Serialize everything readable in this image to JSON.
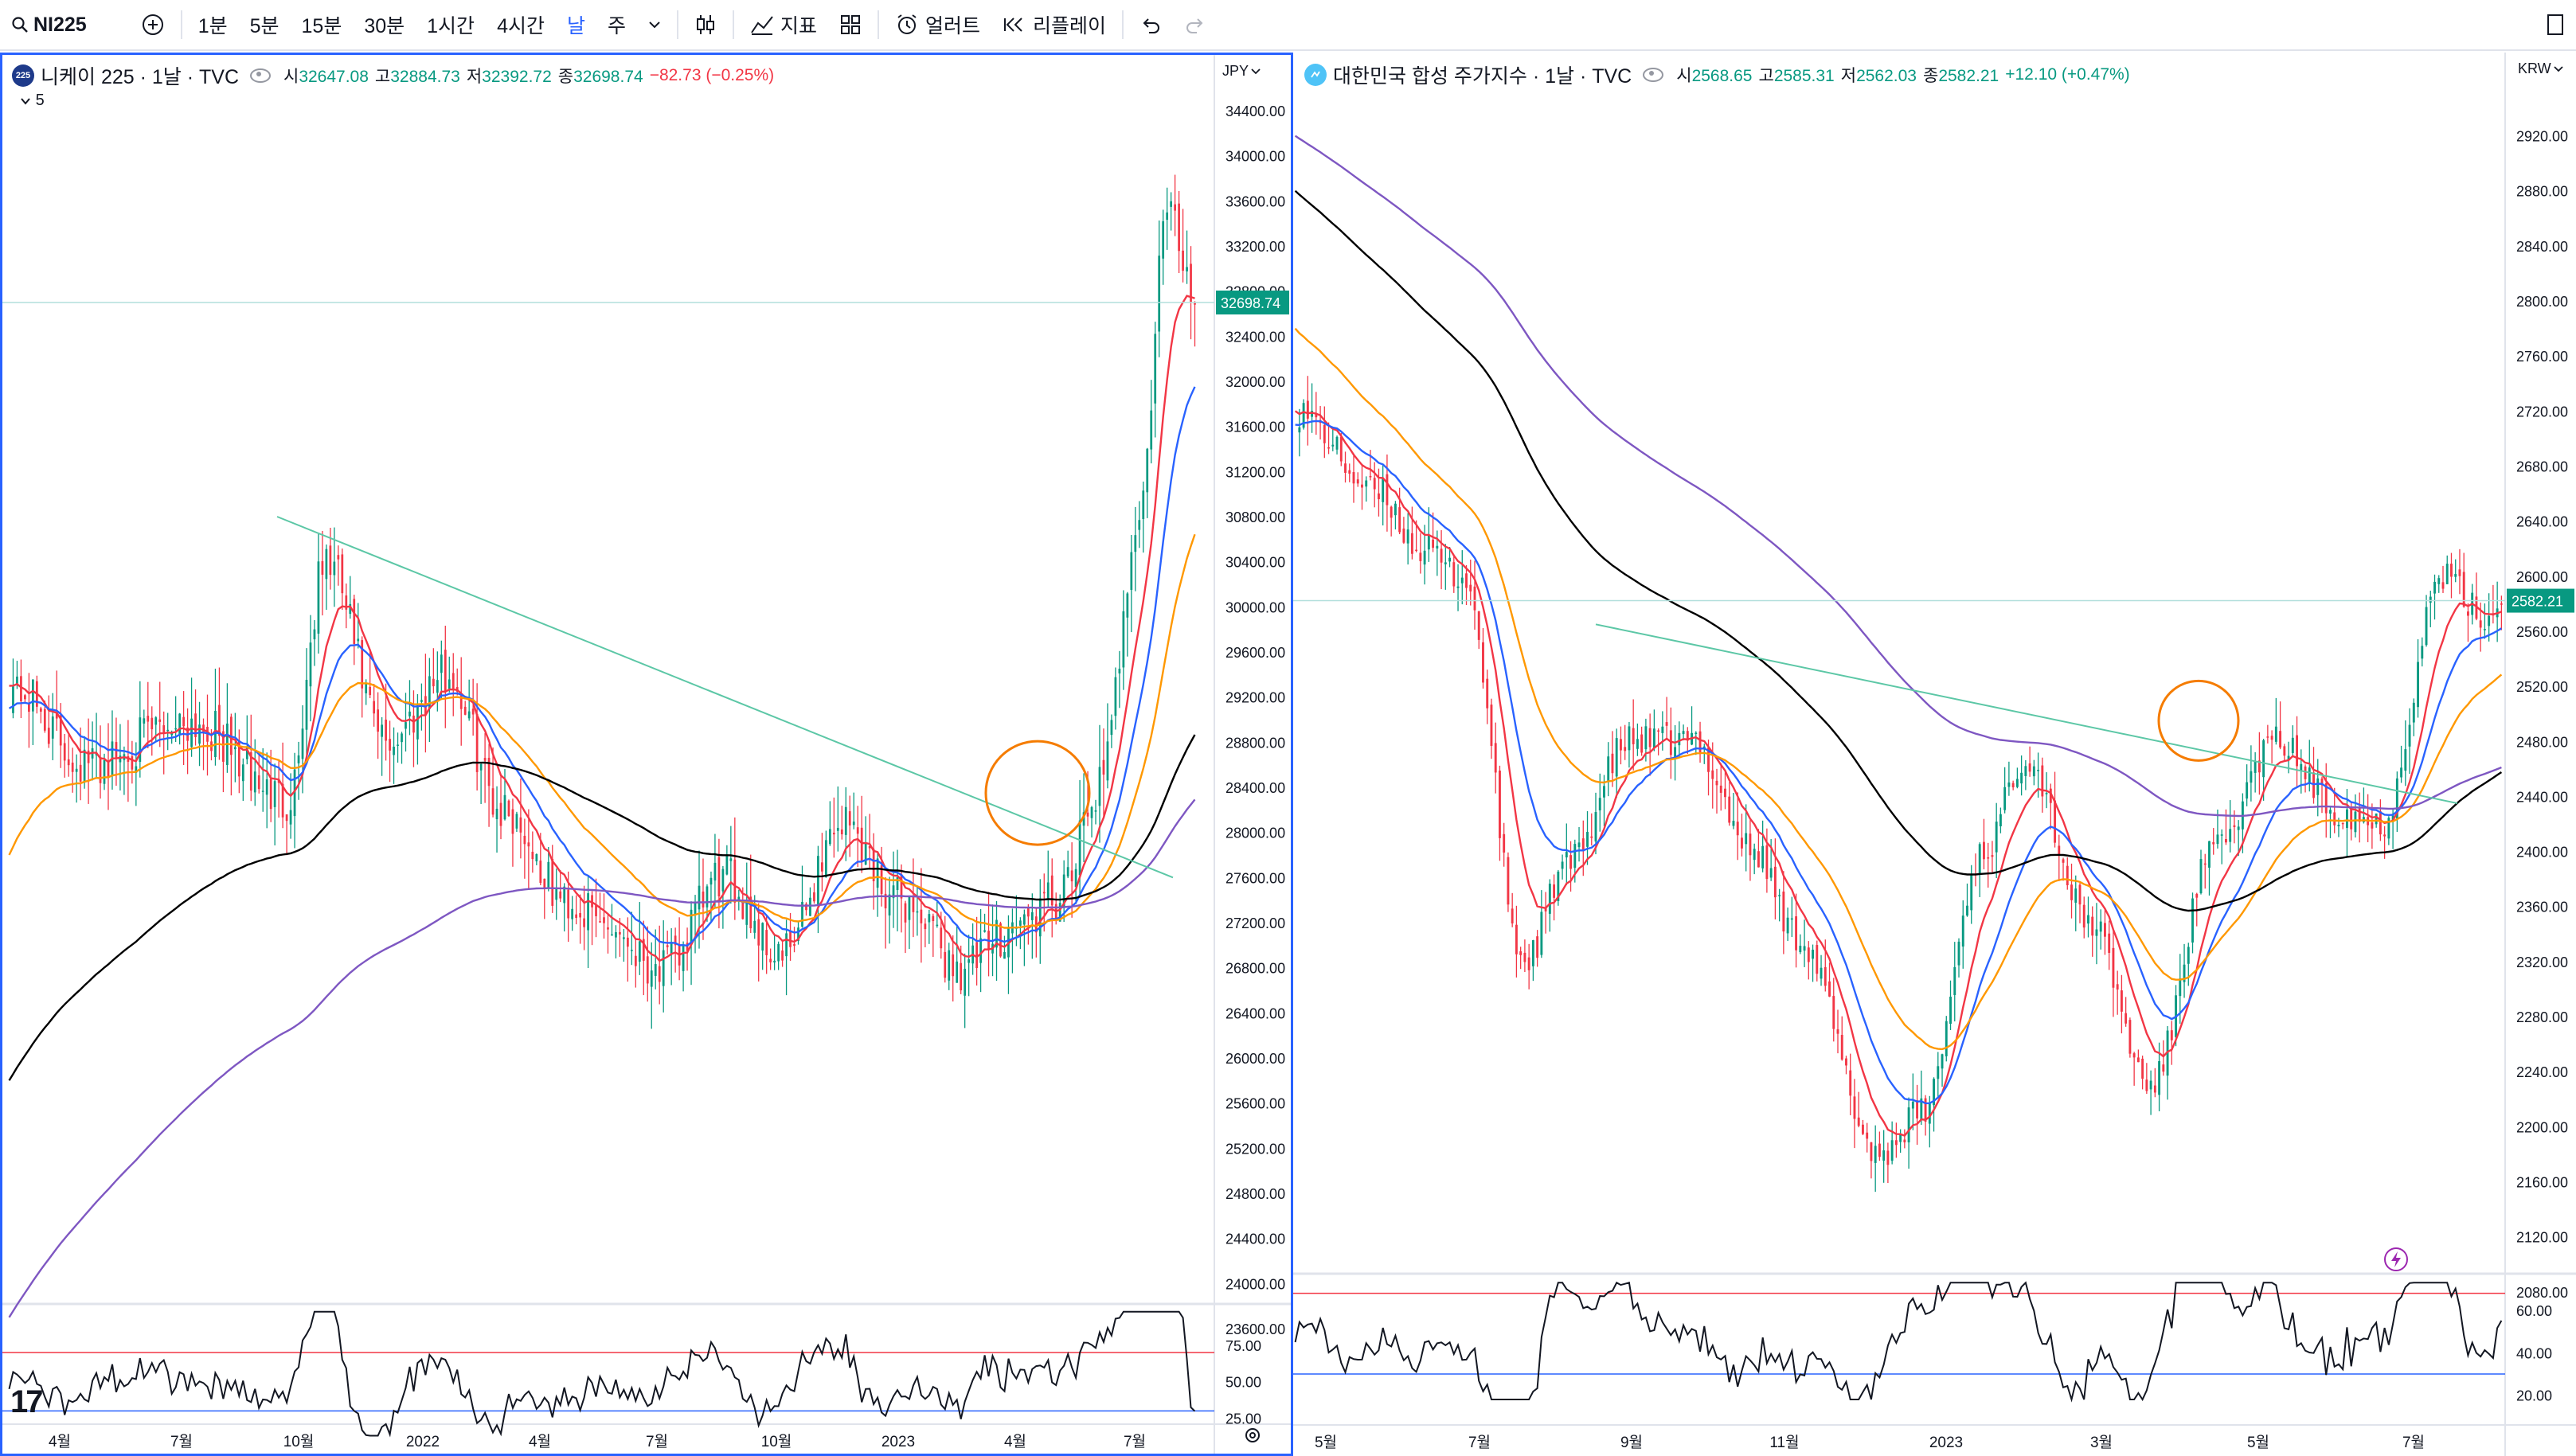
{
  "toolbar": {
    "symbol": "NI225",
    "intervals": [
      "1분",
      "5분",
      "15분",
      "30분",
      "1시간",
      "4시간",
      "날",
      "주"
    ],
    "active_interval": "날",
    "indicators_label": "지표",
    "alerts_label": "얼러트",
    "replay_label": "리플레이"
  },
  "left_chart": {
    "badge": "225",
    "title": "니케이 225 · 1날 · TVC",
    "o_label": "시",
    "o": "32647.08",
    "h_label": "고",
    "h": "32884.73",
    "l_label": "저",
    "l": "32392.72",
    "c_label": "종",
    "c": "32698.74",
    "change": "−82.73 (−0.25%)",
    "collapse_count": "5",
    "currency": "JPY",
    "last_price_label": "32698.74",
    "yticks": [
      "34400.00",
      "34000.00",
      "33600.00",
      "33200.00",
      "32800.00",
      "32400.00",
      "32000.00",
      "31600.00",
      "31200.00",
      "30800.00",
      "30400.00",
      "30000.00",
      "29600.00",
      "29200.00",
      "28800.00",
      "28400.00",
      "28000.00",
      "27600.00",
      "27200.00",
      "26800.00",
      "26400.00",
      "26000.00",
      "25600.00",
      "25200.00",
      "24800.00",
      "24400.00",
      "24000.00",
      "23600.00"
    ],
    "rsi_ticks": [
      "75.00",
      "50.00",
      "25.00"
    ],
    "xticks": [
      "4월",
      "7월",
      "10월",
      "2022",
      "4월",
      "7월",
      "10월",
      "2023",
      "4월",
      "7월"
    ]
  },
  "right_chart": {
    "title": "대한민국 합성 주가지수 · 1날 · TVC",
    "o_label": "시",
    "o": "2568.65",
    "h_label": "고",
    "h": "2585.31",
    "l_label": "저",
    "l": "2562.03",
    "c_label": "종",
    "c": "2582.21",
    "change": "+12.10 (+0.47%)",
    "currency": "KRW",
    "last_price_label": "2582.21",
    "yticks": [
      "2920.00",
      "2880.00",
      "2840.00",
      "2800.00",
      "2760.00",
      "2720.00",
      "2680.00",
      "2640.00",
      "2600.00",
      "2560.00",
      "2520.00",
      "2480.00",
      "2440.00",
      "2400.00",
      "2360.00",
      "2320.00",
      "2280.00",
      "2240.00",
      "2200.00",
      "2160.00",
      "2120.00",
      "2080.00"
    ],
    "rsi_ticks": [
      "60.00",
      "40.00",
      "20.00"
    ],
    "xticks": [
      "5월",
      "7월",
      "9월",
      "11월",
      "2023",
      "3월",
      "5월",
      "7월"
    ]
  },
  "colors": {
    "up": "#089981",
    "down": "#f23645",
    "ema_red": "#f23645",
    "ema_blue": "#2962ff",
    "ema_orange": "#ff9800",
    "ema_black": "#000000",
    "ema_purple": "#7e57c2",
    "trendline": "#5cc7a6",
    "circle": "#f57c00",
    "accent": "#2962ff"
  }
}
